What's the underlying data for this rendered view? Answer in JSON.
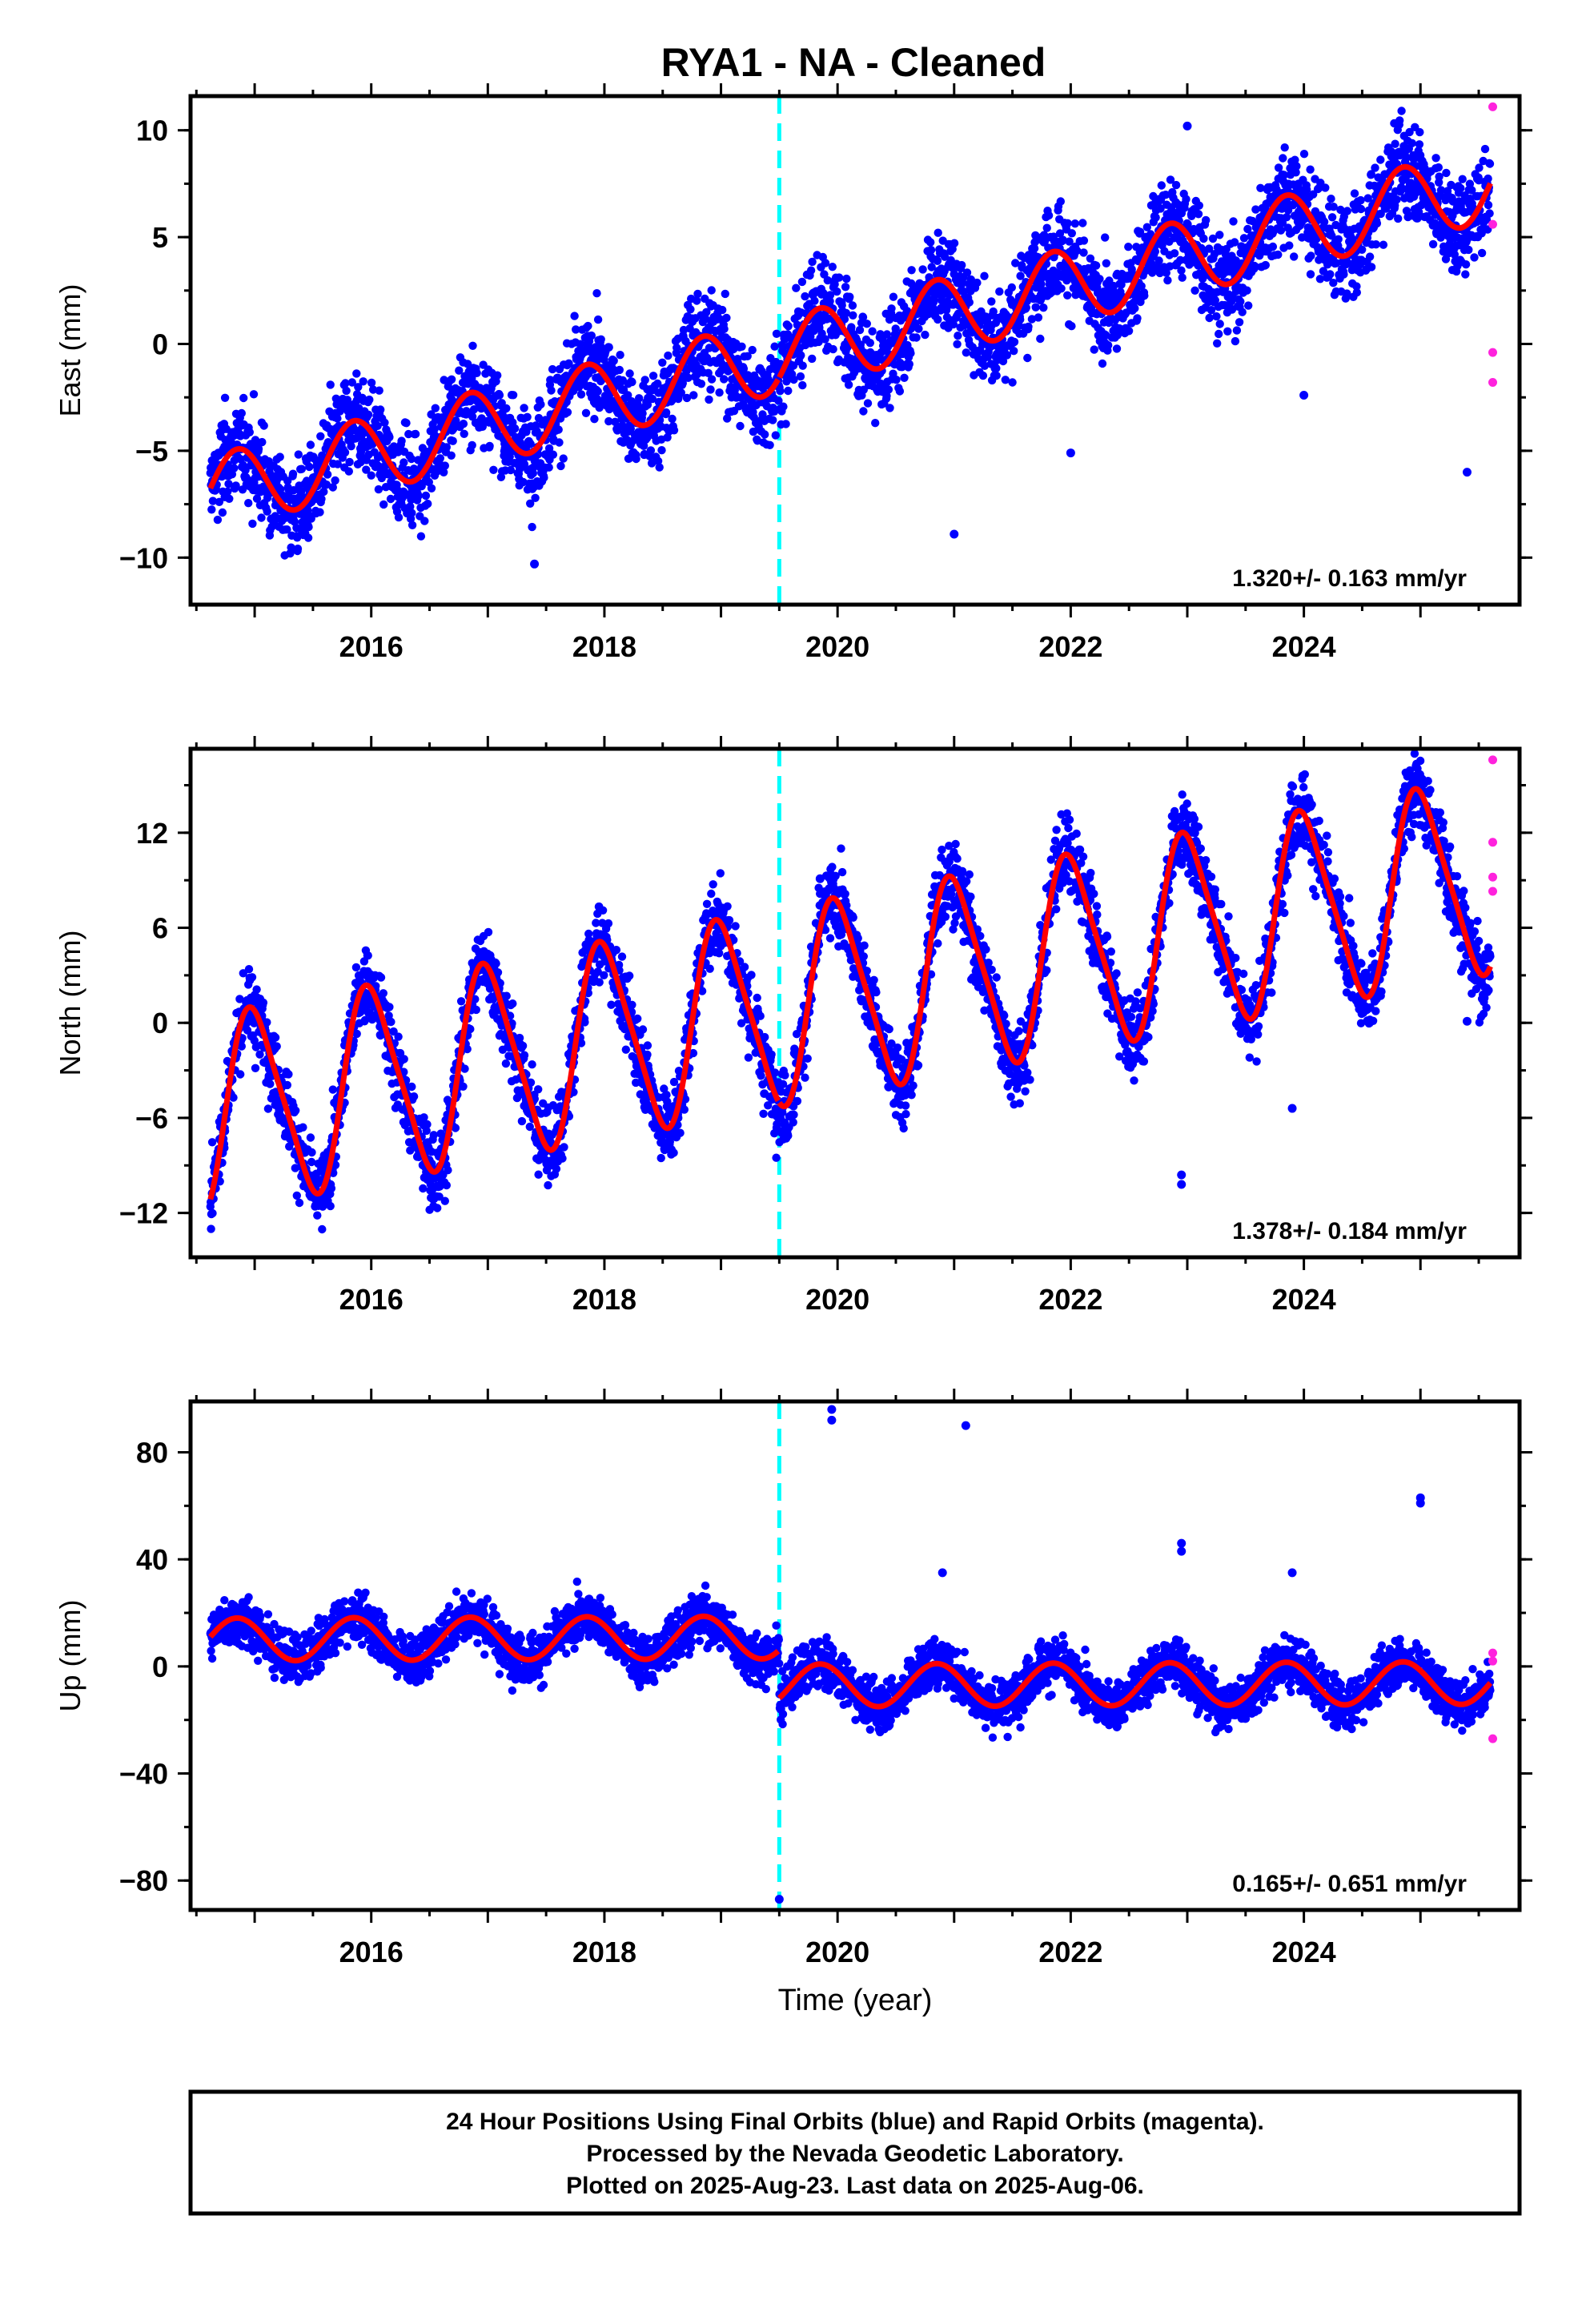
{
  "title": "RYA1  - NA - Cleaned",
  "xlabel": "Time (year)",
  "footer": [
    "24 Hour Positions Using Final Orbits (blue) and Rapid Orbits (magenta).",
    "Processed by the Nevada Geodetic Laboratory.",
    "Plotted on 2025-Aug-23. Last data on 2025-Aug-06."
  ],
  "colors": {
    "final_orbits": "#0000ff",
    "rapid_orbits": "#ff22dd",
    "model": "#ff0000",
    "break_line": "#00ffff"
  },
  "chart_data": [
    {
      "type": "scatter",
      "ylabel": "East (mm)",
      "xlim": [
        2014.45,
        2025.85
      ],
      "ylim": [
        -12.2,
        11.6
      ],
      "yticks": [
        -10,
        -5,
        0,
        5,
        10
      ],
      "ytick_labels": [
        "−10",
        "−5",
        "0",
        "5",
        "10"
      ],
      "xticks": [
        2016,
        2018,
        2020,
        2022,
        2024
      ],
      "xtick_labels": [
        "2016",
        "2018",
        "2020",
        "2022",
        "2024"
      ],
      "equipment_change": 2019.5,
      "rate_label": "1.320+/- 0.163 mm/yr",
      "model": {
        "intercept": -7.2,
        "rate": 1.32,
        "offset": 0,
        "amplitude": 1.75,
        "amplitude2": 0.0,
        "phase": 2014.6
      },
      "noise": 1.1,
      "outliers": [
        [
          2021.0,
          -8.9
        ],
        [
          2022.0,
          -5.1
        ],
        [
          2024.0,
          -2.4
        ],
        [
          2025.4,
          -6.0
        ],
        [
          2017.4,
          -10.3
        ],
        [
          2023.0,
          10.2
        ]
      ],
      "rapid": [
        [
          2025.62,
          11.1
        ],
        [
          2025.62,
          5.6
        ],
        [
          2025.62,
          -0.4
        ],
        [
          2025.62,
          -1.8
        ]
      ]
    },
    {
      "type": "scatter",
      "ylabel": "North (mm)",
      "xlim": [
        2014.45,
        2025.85
      ],
      "ylim": [
        -14.8,
        17.3
      ],
      "yticks": [
        -12,
        -6,
        0,
        6,
        12
      ],
      "ytick_labels": [
        "−12",
        "−6",
        "0",
        "6",
        "12"
      ],
      "xticks": [
        2016,
        2018,
        2020,
        2022,
        2024
      ],
      "xtick_labels": [
        "2016",
        "2018",
        "2020",
        "2022",
        "2024"
      ],
      "equipment_change": 2019.5,
      "rate_label": "1.378+/- 0.184 mm/yr",
      "model": {
        "intercept": -6.0,
        "rate": 1.378,
        "offset": 0,
        "amplitude": 6.0,
        "amplitude2": 1.0,
        "phase": 2014.75
      },
      "noise": 1.2,
      "outliers": [
        [
          2019.85,
          9.1
        ],
        [
          2022.95,
          -9.6
        ],
        [
          2022.95,
          -10.2
        ],
        [
          2023.9,
          -5.4
        ],
        [
          2025.4,
          0.1
        ]
      ],
      "rapid": [
        [
          2025.62,
          16.6
        ],
        [
          2025.62,
          11.4
        ],
        [
          2025.62,
          9.2
        ],
        [
          2025.62,
          8.3
        ]
      ]
    },
    {
      "type": "scatter",
      "ylabel": "Up (mm)",
      "xlim": [
        2014.45,
        2025.85
      ],
      "ylim": [
        -91,
        99
      ],
      "yticks": [
        -80,
        -40,
        0,
        40,
        80
      ],
      "ytick_labels": [
        "−80",
        "−40",
        "0",
        "40",
        "80"
      ],
      "xticks": [
        2016,
        2018,
        2020,
        2022,
        2024
      ],
      "xtick_labels": [
        "2016",
        "2018",
        "2020",
        "2022",
        "2024"
      ],
      "equipment_change": 2019.5,
      "rate_label": "0.165+/- 0.651 mm/yr",
      "model": {
        "intercept": 10.0,
        "rate": 0.165,
        "offset": -18.0,
        "amplitude": 8.0,
        "amplitude2": 0.0,
        "phase": 2015.6
      },
      "noise": 4.5,
      "outliers": [
        [
          2019.95,
          96
        ],
        [
          2019.95,
          92
        ],
        [
          2021.1,
          90
        ],
        [
          2025.0,
          63
        ],
        [
          2025.0,
          61
        ],
        [
          2022.95,
          46
        ],
        [
          2022.95,
          43
        ],
        [
          2023.9,
          35
        ],
        [
          2020.9,
          35
        ],
        [
          2019.5,
          -87
        ]
      ],
      "rapid": [
        [
          2025.62,
          5
        ],
        [
          2025.62,
          2
        ],
        [
          2025.62,
          -27
        ]
      ]
    }
  ]
}
